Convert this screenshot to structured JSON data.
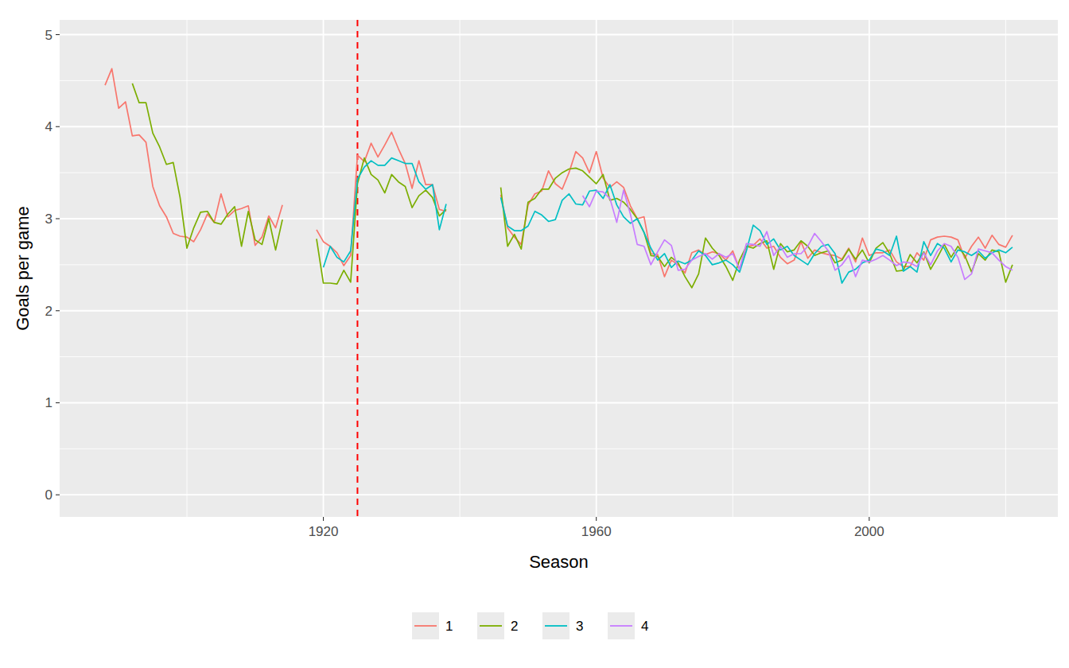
{
  "chart_data": {
    "type": "line",
    "x_label": "Season",
    "y_label": "Goals per game",
    "x": [
      1888,
      1889,
      1890,
      1891,
      1892,
      1893,
      1894,
      1895,
      1896,
      1897,
      1898,
      1899,
      1900,
      1901,
      1902,
      1903,
      1904,
      1905,
      1906,
      1907,
      1908,
      1909,
      1910,
      1911,
      1912,
      1913,
      1914,
      1915,
      1916,
      1917,
      1918,
      1919,
      1920,
      1921,
      1922,
      1923,
      1924,
      1925,
      1926,
      1927,
      1928,
      1929,
      1930,
      1931,
      1932,
      1933,
      1934,
      1935,
      1936,
      1937,
      1938,
      1939,
      1940,
      1941,
      1942,
      1943,
      1944,
      1945,
      1946,
      1947,
      1948,
      1949,
      1950,
      1951,
      1952,
      1953,
      1954,
      1955,
      1956,
      1957,
      1958,
      1959,
      1960,
      1961,
      1962,
      1963,
      1964,
      1965,
      1966,
      1967,
      1968,
      1969,
      1970,
      1971,
      1972,
      1973,
      1974,
      1975,
      1976,
      1977,
      1978,
      1979,
      1980,
      1981,
      1982,
      1983,
      1984,
      1985,
      1986,
      1987,
      1988,
      1989,
      1990,
      1991,
      1992,
      1993,
      1994,
      1995,
      1996,
      1997,
      1998,
      1999,
      2000,
      2001,
      2002,
      2003,
      2004,
      2005,
      2006,
      2007,
      2008,
      2009,
      2010,
      2011,
      2012,
      2013,
      2014,
      2015,
      2016,
      2017,
      2018,
      2019,
      2020,
      2021
    ],
    "series": [
      {
        "name": "1",
        "color": "#F8766D",
        "values": [
          4.45,
          4.63,
          4.2,
          4.27,
          3.9,
          3.91,
          3.83,
          3.35,
          3.14,
          3.02,
          2.84,
          2.81,
          2.8,
          2.75,
          2.88,
          3.05,
          2.96,
          3.27,
          3.02,
          3.09,
          3.11,
          3.14,
          2.71,
          2.8,
          3.03,
          2.9,
          3.15,
          null,
          null,
          null,
          null,
          2.88,
          2.75,
          2.7,
          2.63,
          2.49,
          2.6,
          3.69,
          3.62,
          3.82,
          3.67,
          3.8,
          3.94,
          3.76,
          3.6,
          3.33,
          3.63,
          3.37,
          3.37,
          3.1,
          3.08,
          null,
          null,
          null,
          null,
          null,
          null,
          null,
          3.26,
          2.9,
          2.8,
          2.72,
          3.15,
          3.27,
          3.3,
          3.52,
          3.38,
          3.32,
          3.5,
          3.73,
          3.66,
          3.5,
          3.73,
          3.44,
          3.34,
          3.4,
          3.34,
          3.14,
          3.0,
          3.02,
          2.62,
          2.61,
          2.37,
          2.55,
          2.5,
          2.41,
          2.63,
          2.66,
          2.61,
          2.64,
          2.62,
          2.55,
          2.65,
          2.45,
          2.7,
          2.71,
          2.78,
          2.68,
          2.7,
          2.58,
          2.51,
          2.55,
          2.75,
          2.57,
          2.66,
          2.63,
          2.61,
          2.6,
          2.56,
          2.68,
          2.53,
          2.79,
          2.6,
          2.63,
          2.63,
          2.66,
          2.53,
          2.48,
          2.48,
          2.63,
          2.55,
          2.77,
          2.8,
          2.81,
          2.8,
          2.77,
          2.57,
          2.7,
          2.8,
          2.68,
          2.82,
          2.72,
          2.69,
          2.82
        ]
      },
      {
        "name": "2",
        "color": "#7CAE00",
        "values": [
          null,
          null,
          null,
          null,
          4.47,
          4.26,
          4.26,
          3.93,
          3.78,
          3.59,
          3.61,
          3.23,
          2.68,
          2.9,
          3.07,
          3.08,
          2.96,
          2.94,
          3.05,
          3.13,
          2.7,
          3.08,
          2.77,
          2.72,
          3.0,
          2.66,
          2.99,
          null,
          null,
          null,
          null,
          2.78,
          2.3,
          2.3,
          2.29,
          2.44,
          2.31,
          3.38,
          3.66,
          3.48,
          3.42,
          3.28,
          3.48,
          3.4,
          3.35,
          3.12,
          3.25,
          3.31,
          3.23,
          3.03,
          3.1,
          null,
          null,
          null,
          null,
          null,
          null,
          null,
          3.34,
          2.7,
          2.83,
          2.67,
          3.18,
          3.22,
          3.32,
          3.32,
          3.44,
          3.5,
          3.54,
          3.55,
          3.52,
          3.45,
          3.38,
          3.48,
          3.2,
          3.22,
          3.18,
          3.1,
          3.0,
          2.85,
          2.6,
          2.59,
          2.48,
          2.58,
          2.52,
          2.37,
          2.25,
          2.4,
          2.79,
          2.68,
          2.6,
          2.48,
          2.33,
          2.55,
          2.7,
          2.68,
          2.73,
          2.76,
          2.45,
          2.73,
          2.64,
          2.66,
          2.76,
          2.7,
          2.6,
          2.63,
          2.65,
          2.52,
          2.55,
          2.67,
          2.56,
          2.66,
          2.52,
          2.68,
          2.74,
          2.62,
          2.43,
          2.44,
          2.61,
          2.52,
          2.64,
          2.45,
          2.58,
          2.72,
          2.58,
          2.7,
          2.6,
          2.42,
          2.62,
          2.55,
          2.66,
          2.64,
          2.31,
          2.5
        ]
      },
      {
        "name": "3",
        "color": "#00BFC4",
        "values": [
          null,
          null,
          null,
          null,
          null,
          null,
          null,
          null,
          null,
          null,
          null,
          null,
          null,
          null,
          null,
          null,
          null,
          null,
          null,
          null,
          null,
          null,
          null,
          null,
          null,
          null,
          null,
          null,
          null,
          null,
          null,
          null,
          2.47,
          2.7,
          2.58,
          2.53,
          2.65,
          3.43,
          3.56,
          3.63,
          3.58,
          3.58,
          3.66,
          3.63,
          3.6,
          3.6,
          3.4,
          3.32,
          3.37,
          2.88,
          3.16,
          null,
          null,
          null,
          null,
          null,
          null,
          null,
          3.23,
          2.92,
          2.87,
          2.87,
          2.92,
          3.08,
          3.04,
          2.97,
          2.99,
          3.2,
          3.27,
          3.16,
          3.15,
          3.3,
          3.31,
          3.22,
          3.37,
          3.15,
          3.02,
          2.95,
          3.0,
          2.85,
          2.68,
          2.55,
          2.62,
          2.47,
          2.54,
          2.51,
          2.55,
          2.65,
          2.6,
          2.5,
          2.52,
          2.55,
          2.5,
          2.42,
          2.65,
          2.93,
          2.87,
          2.72,
          2.78,
          2.66,
          2.7,
          2.6,
          2.55,
          2.5,
          2.62,
          2.7,
          2.72,
          2.62,
          2.3,
          2.42,
          2.45,
          2.52,
          2.55,
          2.67,
          2.65,
          2.6,
          2.81,
          2.43,
          2.48,
          2.42,
          2.75,
          2.6,
          2.73,
          2.68,
          2.53,
          2.66,
          2.64,
          2.6,
          2.65,
          2.57,
          2.63,
          2.66,
          2.63,
          2.69
        ]
      },
      {
        "name": "4",
        "color": "#C77CFF",
        "values": [
          null,
          null,
          null,
          null,
          null,
          null,
          null,
          null,
          null,
          null,
          null,
          null,
          null,
          null,
          null,
          null,
          null,
          null,
          null,
          null,
          null,
          null,
          null,
          null,
          null,
          null,
          null,
          null,
          null,
          null,
          null,
          null,
          null,
          null,
          null,
          null,
          null,
          null,
          null,
          null,
          null,
          null,
          null,
          null,
          null,
          null,
          null,
          null,
          null,
          null,
          null,
          null,
          null,
          null,
          null,
          null,
          null,
          null,
          null,
          null,
          null,
          null,
          null,
          null,
          null,
          null,
          null,
          null,
          null,
          null,
          3.25,
          3.13,
          3.3,
          3.29,
          3.22,
          2.96,
          3.31,
          3.05,
          2.72,
          2.7,
          2.5,
          2.64,
          2.77,
          2.71,
          2.44,
          2.45,
          2.55,
          2.59,
          2.62,
          2.56,
          2.62,
          2.58,
          2.62,
          2.45,
          2.73,
          2.72,
          2.7,
          2.86,
          2.6,
          2.7,
          2.58,
          2.62,
          2.62,
          2.7,
          2.84,
          2.75,
          2.65,
          2.44,
          2.5,
          2.6,
          2.37,
          2.55,
          2.53,
          2.56,
          2.6,
          2.55,
          2.49,
          2.53,
          2.52,
          2.48,
          2.63,
          2.5,
          2.65,
          2.73,
          2.7,
          2.58,
          2.34,
          2.4,
          2.67,
          2.65,
          2.63,
          2.55,
          2.48,
          2.44
        ]
      }
    ],
    "annotations": [
      {
        "x": 1925,
        "color": "#FF0000",
        "line_style": "dashed"
      }
    ],
    "xlim": [
      1881.35,
      2027.65
    ],
    "xticks": [
      1920,
      1960,
      2000
    ],
    "ylim": [
      -0.24,
      5.16
    ],
    "yticks": [
      0,
      1,
      2,
      3,
      4,
      5
    ],
    "grid": true,
    "legend": "bottom"
  }
}
